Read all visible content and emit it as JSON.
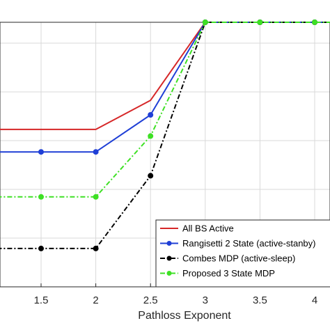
{
  "chart_data": {
    "type": "line",
    "title": "",
    "xlabel": "Pathloss Exponent",
    "ylabel": "",
    "xlim": [
      1,
      4.2
    ],
    "ylim": [
      0,
      1
    ],
    "xticks": [
      1.5,
      2,
      2.5,
      3,
      3.5,
      4
    ],
    "xtick_labels": [
      "1.5",
      "2",
      "2.5",
      "3",
      "3.5",
      "4"
    ],
    "grid": true,
    "legend_position": "bottom-right",
    "series": [
      {
        "name": "All BS Active",
        "color": "#d62728",
        "style": "solid",
        "marker": "none",
        "x": [
          1,
          1.5,
          2,
          2.5,
          3,
          3.5,
          4,
          4.2
        ],
        "y": [
          0.595,
          0.595,
          0.595,
          0.705,
          1.0,
          1.0,
          1.0,
          1.0
        ]
      },
      {
        "name": "Rangisetti 2 State (active-stanby)",
        "color": "#1f3fd6",
        "style": "solid",
        "marker": "circle",
        "x": [
          1,
          1.5,
          2,
          2.5,
          3,
          3.5,
          4,
          4.2
        ],
        "y": [
          0.51,
          0.51,
          0.51,
          0.65,
          1.0,
          1.0,
          1.0,
          1.0
        ]
      },
      {
        "name": "Combes MDP (active-sleep)",
        "color": "#000000",
        "style": "dashdot",
        "marker": "circle",
        "x": [
          1,
          1.5,
          2,
          2.5,
          3,
          3.5,
          4,
          4.2
        ],
        "y": [
          0.145,
          0.145,
          0.145,
          0.42,
          1.0,
          1.0,
          1.0,
          1.0
        ]
      },
      {
        "name": "Proposed 3 State MDP",
        "color": "#3ee024",
        "style": "dashdot",
        "marker": "circle",
        "x": [
          1,
          1.5,
          2,
          2.5,
          3,
          3.5,
          4,
          4.2
        ],
        "y": [
          0.34,
          0.34,
          0.34,
          0.57,
          1.0,
          1.0,
          1.0,
          1.0
        ]
      }
    ]
  }
}
